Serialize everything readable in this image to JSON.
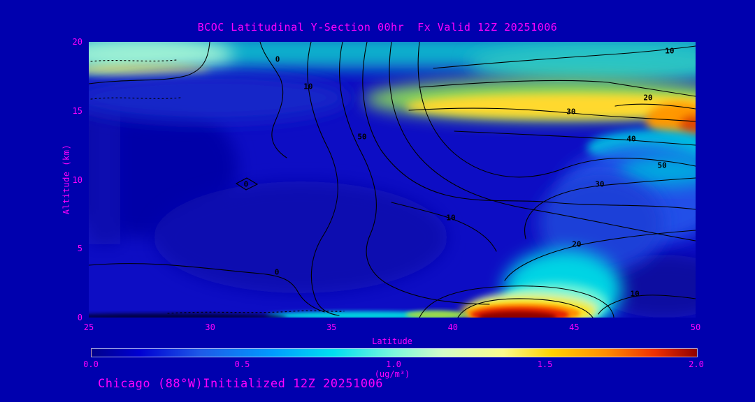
{
  "page": {
    "background_color": "#0000AE",
    "text_color": "#FF00FF",
    "contour_line_color": "#000000"
  },
  "footer": {
    "caption": "Chicago (88°W)Initialized 12Z 20251006"
  },
  "chart_data": {
    "type": "heatmap",
    "title": "BCOC Latitudinal Y-Section 00hr  Fx Valid 12Z 20251006",
    "xlabel": "Latitude",
    "ylabel": "Altitude (km)",
    "xlim": [
      25,
      50
    ],
    "ylim": [
      0,
      20
    ],
    "x_ticks": [
      25,
      30,
      35,
      40,
      45,
      50
    ],
    "y_ticks": [
      0,
      5,
      10,
      15,
      20
    ],
    "grid": false,
    "legend_position": "bottom-colorbar",
    "colorbar": {
      "label": "(ug/m³)",
      "min": 0.0,
      "max": 2.0,
      "tick_labels": [
        "0.0",
        "0.5",
        "1.0",
        "1.5",
        "2.0"
      ],
      "gradient": [
        {
          "offset": 0.0,
          "color": "#00008B"
        },
        {
          "offset": 0.08,
          "color": "#0000D2"
        },
        {
          "offset": 0.18,
          "color": "#1E5AE8"
        },
        {
          "offset": 0.3,
          "color": "#009CFF"
        },
        {
          "offset": 0.4,
          "color": "#00E0F0"
        },
        {
          "offset": 0.5,
          "color": "#7CF8DC"
        },
        {
          "offset": 0.58,
          "color": "#D2FCC8"
        },
        {
          "offset": 0.68,
          "color": "#FBFB8C"
        },
        {
          "offset": 0.76,
          "color": "#FFD200"
        },
        {
          "offset": 0.85,
          "color": "#FF8C00"
        },
        {
          "offset": 0.93,
          "color": "#F03000"
        },
        {
          "offset": 1.0,
          "color": "#8F0000"
        }
      ]
    },
    "contour_levels_labeled": [
      0,
      10,
      20,
      30,
      40,
      50
    ],
    "contour_annotations": [
      {
        "label": "0",
        "lat": 32.78,
        "alt_km": 18.73
      },
      {
        "label": "10",
        "lat": 34.04,
        "alt_km": 16.76
      },
      {
        "label": "50",
        "lat": 36.26,
        "alt_km": 13.11
      },
      {
        "label": "10",
        "lat": 48.93,
        "alt_km": 19.34
      },
      {
        "label": "20",
        "lat": 48.04,
        "alt_km": 15.95
      },
      {
        "label": "30",
        "lat": 44.87,
        "alt_km": 14.94
      },
      {
        "label": "40",
        "lat": 47.35,
        "alt_km": 12.96
      },
      {
        "label": "50",
        "lat": 48.62,
        "alt_km": 11.04
      },
      {
        "label": "30",
        "lat": 46.05,
        "alt_km": 9.67
      },
      {
        "label": "10",
        "lat": 39.92,
        "alt_km": 7.24
      },
      {
        "label": "20",
        "lat": 45.1,
        "alt_km": 5.32
      },
      {
        "label": "0",
        "lat": 31.48,
        "alt_km": 9.67
      },
      {
        "label": "0",
        "lat": 32.75,
        "alt_km": 3.29
      },
      {
        "label": "10",
        "lat": 47.5,
        "alt_km": 1.72
      }
    ],
    "features": [
      {
        "name": "surface-maximum",
        "lat_range": [
          39.5,
          46
        ],
        "alt_range_km": [
          0,
          1.5
        ],
        "peak_value_ugm3": 2.0,
        "color": "dark red"
      },
      {
        "name": "surface-plume-updraft",
        "lat_range": [
          42,
          46
        ],
        "alt_range_km": [
          0,
          5
        ],
        "value_ugm3": 0.9,
        "color": "cyan"
      },
      {
        "name": "surface-streak",
        "lat_range": [
          33,
          39.5
        ],
        "alt_range_km": [
          0,
          0.7
        ],
        "value_ugm3": 0.8,
        "color": "cyan"
      },
      {
        "name": "upper-level-band",
        "lat_range": [
          36,
          50
        ],
        "alt_range_km": [
          14.5,
          17.5
        ],
        "value_ugm3": 1.4,
        "color": "yellow"
      },
      {
        "name": "upper-right-maximum",
        "lat_range": [
          48.5,
          50
        ],
        "alt_range_km": [
          14.5,
          17
        ],
        "value_ugm3": 1.7,
        "color": "orange-red"
      },
      {
        "name": "upper-left-band",
        "lat_range": [
          25,
          31
        ],
        "alt_range_km": [
          17.5,
          20
        ],
        "value_ugm3": 1.0,
        "color": "pale cyan"
      },
      {
        "name": "mid-right-enhancement",
        "lat_range": [
          44,
          50
        ],
        "alt_range_km": [
          8,
          14
        ],
        "value_ugm3": 0.6,
        "color": "bright blue / cyan"
      },
      {
        "name": "background-field",
        "lat_range": [
          25,
          50
        ],
        "alt_range_km": [
          0,
          20
        ],
        "value_ugm3": 0.25,
        "color": "deep blue"
      }
    ]
  }
}
